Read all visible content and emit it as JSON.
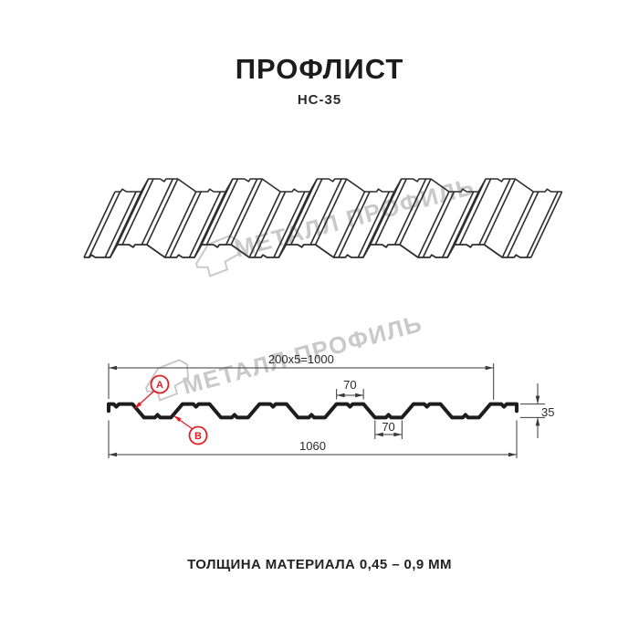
{
  "title": "ПРОФЛИСТ",
  "subtitle": "НС-35",
  "footer": "ТОЛЩИНА МАТЕРИАЛА 0,45 – 0,9 ММ",
  "watermark": {
    "text": "МЕТАЛЛ ПРОФИЛЬ",
    "color": "#c9c9c9",
    "logo": "metal-profil-logo"
  },
  "colors": {
    "ink": "#1c1c1c",
    "drawing_line": "#2e2e2e",
    "section_line": "#1d1d1d",
    "dimension_line": "#3a3a3a",
    "accent_red": "#e31e24",
    "background": "#ffffff"
  },
  "section": {
    "dimensions": {
      "coverage": "200x5=1000",
      "crest_width": "70",
      "valley_width": "70",
      "height": "35",
      "total_width": "1060"
    },
    "markers": [
      {
        "label": "A"
      },
      {
        "label": "B"
      }
    ],
    "spec_mm": {
      "module": 200,
      "modules_count": 5,
      "coverage": 1000,
      "rib_top_width": 70,
      "rib_bottom_width": 70,
      "height": 35,
      "total_width": 1060
    }
  }
}
